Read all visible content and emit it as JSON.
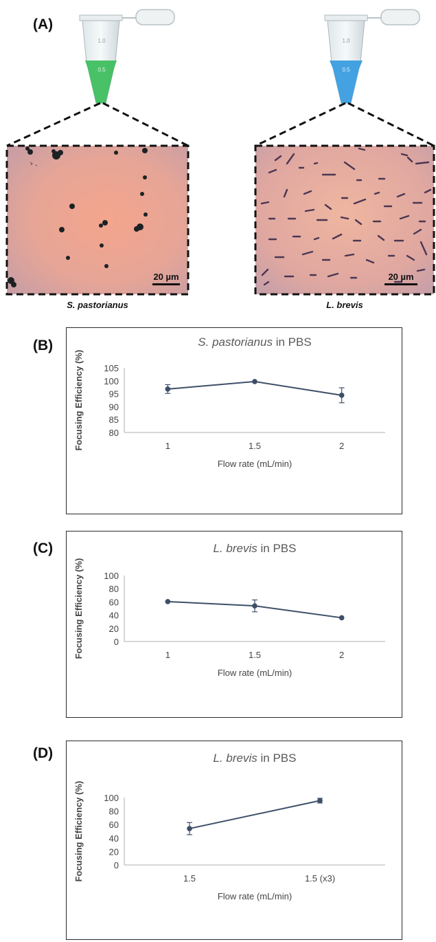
{
  "panel_a": {
    "label": "(A)",
    "images": [
      {
        "caption": "S. pastorianus",
        "scale_bar": "20 µm",
        "tube_color": "#3fbf5f",
        "tube_mark_1": "1.0",
        "tube_mark_2": "0.5"
      },
      {
        "caption": "L. brevis",
        "scale_bar": "20 µm",
        "tube_color": "#3a9de0",
        "tube_mark_1": "1.0",
        "tube_mark_2": "0.5"
      }
    ]
  },
  "colors": {
    "series": "#3d4f68",
    "axis": "#bfbfbf",
    "frame": "#2a2a2a",
    "title": "#595959"
  },
  "chart_data": [
    {
      "panel": "(B)",
      "type": "line",
      "title_italic": "S. pastorianus",
      "title_rest": " in PBS",
      "xlabel": "Flow rate (mL/min)",
      "ylabel": "Focusing Efficiency (%)",
      "categories": [
        "1",
        "1.5",
        "2"
      ],
      "values": [
        96.8,
        99.7,
        94.4
      ],
      "errors": [
        1.7,
        0.0,
        2.9
      ],
      "ylim": [
        80,
        105
      ],
      "yticks": [
        "80",
        "85",
        "90",
        "95",
        "100",
        "105"
      ],
      "grid": false,
      "legend": "none"
    },
    {
      "panel": "(C)",
      "type": "line",
      "title_italic": "L. brevis",
      "title_rest": " in PBS",
      "xlabel": "Flow rate (mL/min)",
      "ylabel": "Focusing Efficiency (%)",
      "categories": [
        "1",
        "1.5",
        "2"
      ],
      "values": [
        60.5,
        54.0,
        36.0
      ],
      "errors": [
        0.0,
        9.0,
        0.0
      ],
      "ylim": [
        0,
        100
      ],
      "yticks": [
        "0",
        "20",
        "40",
        "60",
        "80",
        "100"
      ],
      "grid": false,
      "legend": "none"
    },
    {
      "panel": "(D)",
      "type": "line",
      "title_italic": "L. brevis",
      "title_rest": " in PBS",
      "xlabel": "Flow rate (mL/min)",
      "ylabel": "Focusing Efficiency (%)",
      "categories": [
        "1.5",
        "1.5 (x3)"
      ],
      "values": [
        54.0,
        95.5
      ],
      "errors": [
        9.0,
        3.5
      ],
      "ylim": [
        0,
        100
      ],
      "yticks": [
        "0",
        "20",
        "40",
        "60",
        "80",
        "100"
      ],
      "grid": false,
      "legend": "none"
    }
  ]
}
